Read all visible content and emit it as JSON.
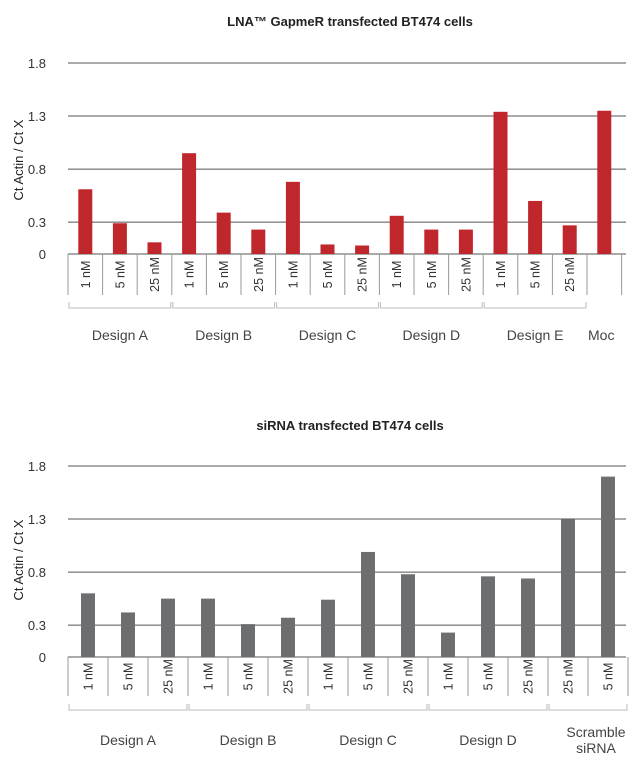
{
  "chart_data": [
    {
      "type": "bar",
      "title": "LNA™ GapmeR transfected BT474 cells",
      "ylabel": "Ct Actin / Ct X",
      "xlabel": "",
      "ylim": [
        0,
        1.8
      ],
      "yticks": [
        "0",
        "0.3",
        "0.8",
        "1.3",
        "1.8"
      ],
      "grid": true,
      "color": "#c0272d",
      "categories": [
        "1 nM",
        "5 nM",
        "25 nM",
        "1 nM",
        "5 nM",
        "25 nM",
        "1 nM",
        "5 nM",
        "25 nM",
        "1 nM",
        "5 nM",
        "25 nM",
        "1 nM",
        "5 nM",
        "25 nM",
        ""
      ],
      "values": [
        0.61,
        0.29,
        0.11,
        0.95,
        0.39,
        0.23,
        0.68,
        0.09,
        0.08,
        0.36,
        0.23,
        0.23,
        1.34,
        0.5,
        0.27,
        1.35
      ],
      "groups": [
        {
          "label": "Design A",
          "size": 3
        },
        {
          "label": "Design B",
          "size": 3
        },
        {
          "label": "Design C",
          "size": 3
        },
        {
          "label": "Design D",
          "size": 3
        },
        {
          "label": "Design E",
          "size": 3
        },
        {
          "label": "Moc",
          "size": 1
        }
      ]
    },
    {
      "type": "bar",
      "title": "siRNA transfected BT474 cells",
      "ylabel": "Ct Actin / Ct X",
      "xlabel": "",
      "ylim": [
        0,
        1.8
      ],
      "yticks": [
        "0",
        "0.3",
        "0.8",
        "1.3",
        "1.8"
      ],
      "grid": true,
      "color": "#6d6e70",
      "categories": [
        "1 nM",
        "5 nM",
        "25 nM",
        "1 nM",
        "5 nM",
        "25 nM",
        "1 nM",
        "5 nM",
        "25 nM",
        "1 nM",
        "5 nM",
        "25 nM",
        "25 nM",
        "5 nM"
      ],
      "values": [
        0.6,
        0.42,
        0.55,
        0.55,
        0.31,
        0.37,
        0.54,
        0.99,
        0.78,
        0.23,
        0.76,
        0.74,
        1.3,
        1.7
      ],
      "groups": [
        {
          "label": "Design A",
          "size": 3
        },
        {
          "label": "Design B",
          "size": 3
        },
        {
          "label": "Design C",
          "size": 3
        },
        {
          "label": "Design D",
          "size": 3
        },
        {
          "label": "Scramble siRNA",
          "size": 2
        }
      ]
    }
  ]
}
